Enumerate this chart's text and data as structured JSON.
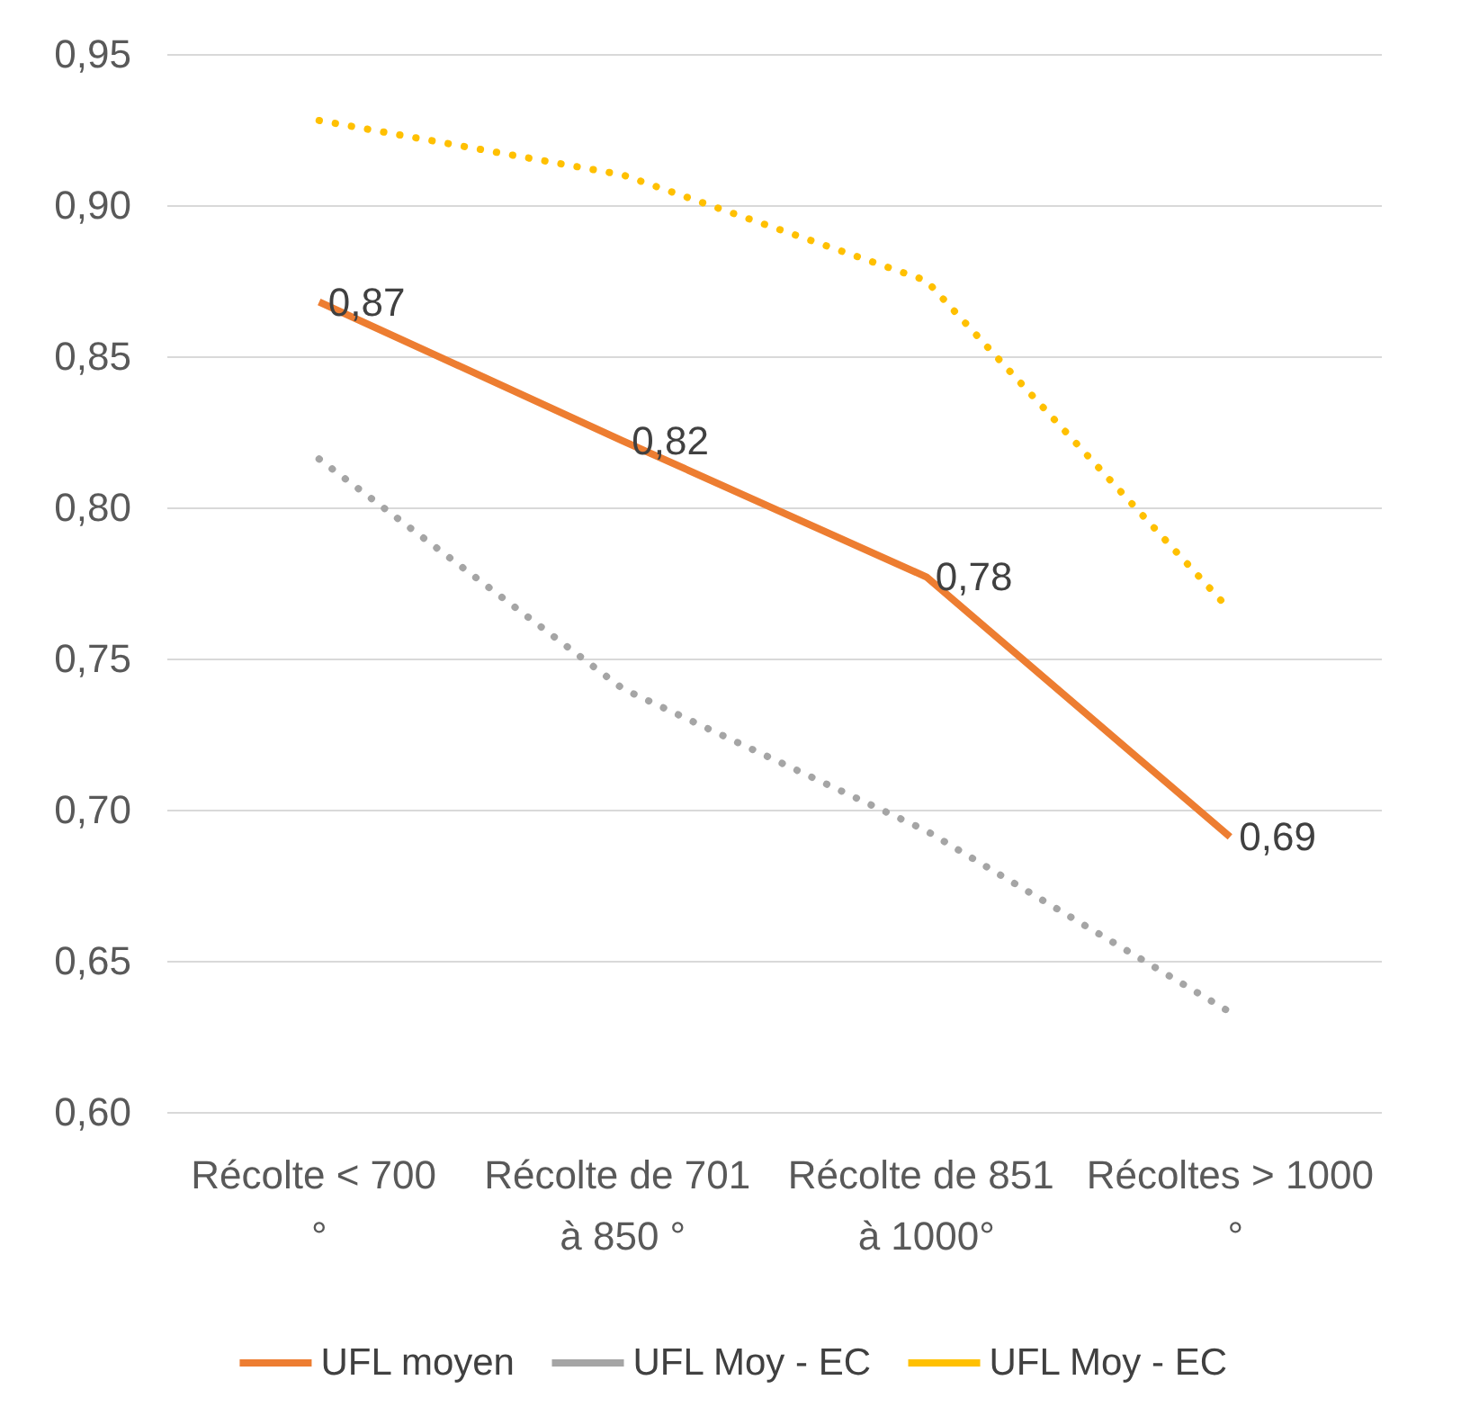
{
  "chart_data": {
    "type": "line",
    "categories": [
      "Récolte < 700 °",
      "Récolte de 701 à 850 °",
      "Récolte de 851 à 1000°",
      "Récoltes > 1000 °"
    ],
    "series": [
      {
        "name": "UFL moyen",
        "color": "#ed7d31",
        "values": [
          0.868,
          0.822,
          0.777,
          0.691
        ],
        "value_labels": [
          "0,87",
          "0,82",
          "0,78",
          "0,69"
        ],
        "line_style": "solid"
      },
      {
        "name": "UFL Moy - EC",
        "color": "#a5a5a5",
        "values": [
          0.816,
          0.74,
          0.693,
          0.633
        ],
        "line_style": "dotted"
      },
      {
        "name": "UFL Moy - EC",
        "color": "#ffc000",
        "values": [
          0.928,
          0.91,
          0.875,
          0.766
        ],
        "line_style": "dotted"
      }
    ],
    "ylim": [
      0.6,
      0.95
    ],
    "yticks": [
      {
        "value": 0.6,
        "label": "0,60"
      },
      {
        "value": 0.65,
        "label": "0,65"
      },
      {
        "value": 0.7,
        "label": "0,70"
      },
      {
        "value": 0.75,
        "label": "0,75"
      },
      {
        "value": 0.8,
        "label": "0,80"
      },
      {
        "value": 0.85,
        "label": "0,85"
      },
      {
        "value": 0.9,
        "label": "0,90"
      },
      {
        "value": 0.95,
        "label": "0,95"
      }
    ],
    "grid": "y",
    "legend": "bottom",
    "marker": "none"
  }
}
